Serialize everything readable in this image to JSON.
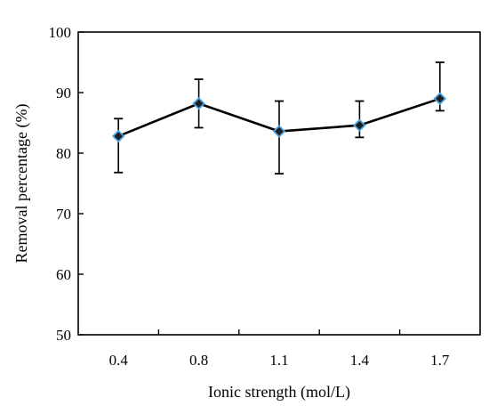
{
  "chart_data": {
    "type": "line",
    "xlabel": "Ionic strength (mol/L)",
    "ylabel": "Removal percentage (%)",
    "categories": [
      "0.4",
      "0.8",
      "1.1",
      "1.4",
      "1.7"
    ],
    "ylim": [
      50,
      100
    ],
    "yticks": [
      50,
      60,
      70,
      80,
      90,
      100
    ],
    "grid": false,
    "series": [
      {
        "values": [
          82.8,
          88.2,
          83.6,
          84.6,
          89.0
        ],
        "error_upper": [
          85.7,
          92.2,
          88.6,
          88.6,
          95.0
        ],
        "error_lower": [
          76.8,
          84.2,
          76.6,
          82.6,
          87.0
        ],
        "line_color": "#000000",
        "marker_fill": "#1f1f1f",
        "marker_edge": "#4aa3df"
      }
    ]
  }
}
